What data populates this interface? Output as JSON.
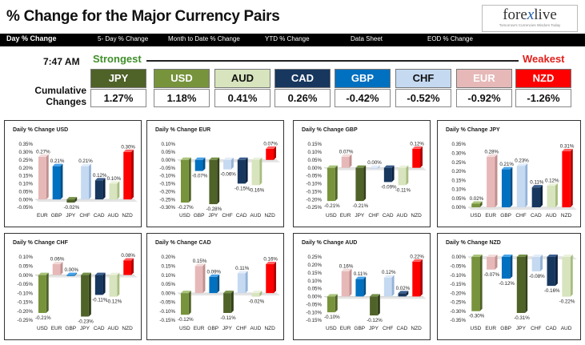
{
  "header": {
    "title": "% Change for the Major Currency Pairs",
    "logo_pre": "fore",
    "logo_x": "x",
    "logo_post": "live",
    "logo_tagline": "Tomorrow's Currencies Wisdom Today"
  },
  "nav": {
    "tabs": [
      {
        "label": "Day % Change"
      },
      {
        "label": "5- Day % Change"
      },
      {
        "label": "Month to Date % Change"
      },
      {
        "label": "YTD % Change"
      },
      {
        "label": "Data Sheet"
      },
      {
        "label": "EOD % Change"
      }
    ]
  },
  "summary": {
    "time": "7:47 AM",
    "strongest_label": "Strongest",
    "weakest_label": "Weakest",
    "cumulative_label": "Cumulative Changes",
    "currencies": [
      {
        "code": "JPY",
        "value": "1.27%",
        "bg": "#4f6228",
        "fg": "#ffffff"
      },
      {
        "code": "USD",
        "value": "1.18%",
        "bg": "#77933c",
        "fg": "#ffffff"
      },
      {
        "code": "AUD",
        "value": "0.41%",
        "bg": "#d7e4bd",
        "fg": "#111111"
      },
      {
        "code": "CAD",
        "value": "0.26%",
        "bg": "#17375e",
        "fg": "#ffffff"
      },
      {
        "code": "GBP",
        "value": "-0.42%",
        "bg": "#0070c0",
        "fg": "#ffffff"
      },
      {
        "code": "CHF",
        "value": "-0.52%",
        "bg": "#c5d9f1",
        "fg": "#111111"
      },
      {
        "code": "EUR",
        "value": "-0.92%",
        "bg": "#e6b9b8",
        "fg": "#ffffff"
      },
      {
        "code": "NZD",
        "value": "-1.26%",
        "bg": "#ff0000",
        "fg": "#ffffff"
      }
    ]
  },
  "colors": {
    "USD": {
      "main": "#77933c",
      "light": "#a9c47a",
      "dark": "#4f6228"
    },
    "EUR": {
      "main": "#e6b9b8",
      "light": "#f2dcdb",
      "dark": "#c09090"
    },
    "GBP": {
      "main": "#0070c0",
      "light": "#4aa3e8",
      "dark": "#004f88"
    },
    "JPY": {
      "main": "#4f6228",
      "light": "#76924a",
      "dark": "#33401a"
    },
    "CHF": {
      "main": "#c5d9f1",
      "light": "#e3edf9",
      "dark": "#95b3d7"
    },
    "CAD": {
      "main": "#17375e",
      "light": "#3c5f8e",
      "dark": "#0d2240"
    },
    "AUD": {
      "main": "#d7e4bd",
      "light": "#ebf2dc",
      "dark": "#a8bd80"
    },
    "NZD": {
      "main": "#ff0000",
      "light": "#ff6060",
      "dark": "#b00000"
    }
  },
  "chart_data": [
    {
      "type": "bar",
      "base": "USD",
      "title": "Daily % Change USD",
      "categories": [
        "EUR",
        "GBP",
        "JPY",
        "CHF",
        "CAD",
        "AUD",
        "NZD"
      ],
      "values": [
        0.27,
        0.21,
        -0.02,
        0.21,
        0.12,
        0.1,
        0.3
      ],
      "labels": [
        "0.27%",
        "0.21%",
        "-0.02%",
        "0.21%",
        "0.12%",
        "0.10%",
        "0.30%"
      ],
      "ticks": [
        "0.35%",
        "0.30%",
        "0.25%",
        "0.20%",
        "0.15%",
        "0.10%",
        "0.05%",
        "0.00%",
        "-0.05%"
      ],
      "ylim": [
        -0.05,
        0.35
      ],
      "grid": false
    },
    {
      "type": "bar",
      "base": "EUR",
      "title": "Daily % Change EUR",
      "categories": [
        "USD",
        "GBP",
        "JPY",
        "CHF",
        "CAD",
        "AUD",
        "NZD"
      ],
      "values": [
        -0.27,
        -0.07,
        -0.28,
        -0.06,
        -0.15,
        -0.16,
        0.07
      ],
      "labels": [
        "-0.27%",
        "-0.07%",
        "-0.28%",
        "-0.06%",
        "-0.15%",
        "-0.16%",
        "0.07%"
      ],
      "ticks": [
        "0.10%",
        "0.05%",
        "0.00%",
        "-0.05%",
        "-0.10%",
        "-0.15%",
        "-0.20%",
        "-0.25%",
        "-0.30%"
      ],
      "ylim": [
        -0.3,
        0.1
      ],
      "grid": false
    },
    {
      "type": "bar",
      "base": "GBP",
      "title": "Daily % Change GBP",
      "categories": [
        "USD",
        "EUR",
        "JPY",
        "CHF",
        "CAD",
        "AUD",
        "NZD"
      ],
      "values": [
        -0.21,
        0.07,
        -0.21,
        0.0,
        -0.09,
        -0.11,
        0.12
      ],
      "labels": [
        "-0.21%",
        "0.07%",
        "-0.21%",
        "0.00%",
        "-0.09%",
        "-0.11%",
        "0.12%"
      ],
      "ticks": [
        "0.15%",
        "0.10%",
        "0.05%",
        "0.00%",
        "-0.05%",
        "-0.10%",
        "-0.15%",
        "-0.20%",
        "-0.25%"
      ],
      "ylim": [
        -0.25,
        0.15
      ],
      "grid": false
    },
    {
      "type": "bar",
      "base": "JPY",
      "title": "Daily % Change JPY",
      "categories": [
        "USD",
        "EUR",
        "GBP",
        "CHF",
        "CAD",
        "AUD",
        "NZD"
      ],
      "values": [
        0.02,
        0.28,
        0.21,
        0.23,
        0.11,
        0.12,
        0.31
      ],
      "labels": [
        "0.02%",
        "0.28%",
        "0.21%",
        "0.23%",
        "0.11%",
        "0.12%",
        "0.31%"
      ],
      "ticks": [
        "0.35%",
        "0.30%",
        "0.25%",
        "0.20%",
        "0.15%",
        "0.10%",
        "0.05%",
        "0.00%"
      ],
      "ylim": [
        0.0,
        0.35
      ],
      "grid": false
    },
    {
      "type": "bar",
      "base": "CHF",
      "title": "Daily % Change CHF",
      "categories": [
        "USD",
        "EUR",
        "GBP",
        "JPY",
        "CAD",
        "AUD",
        "NZD"
      ],
      "values": [
        -0.21,
        0.06,
        0.0,
        -0.23,
        -0.11,
        -0.12,
        0.08
      ],
      "labels": [
        "-0.21%",
        "0.06%",
        "0.00%",
        "-0.23%",
        "-0.11%",
        "-0.12%",
        "0.08%"
      ],
      "ticks": [
        "0.10%",
        "0.05%",
        "0.00%",
        "-0.05%",
        "-0.10%",
        "-0.15%",
        "-0.20%",
        "-0.25%"
      ],
      "ylim": [
        -0.25,
        0.1
      ],
      "grid": false
    },
    {
      "type": "bar",
      "base": "CAD",
      "title": "Daily % Change CAD",
      "categories": [
        "USD",
        "EUR",
        "GBP",
        "JPY",
        "CHF",
        "AUD",
        "NZD"
      ],
      "values": [
        -0.12,
        0.15,
        0.09,
        -0.11,
        0.11,
        -0.02,
        0.16
      ],
      "labels": [
        "-0.12%",
        "0.15%",
        "0.09%",
        "-0.11%",
        "0.11%",
        "-0.02%",
        "0.16%"
      ],
      "ticks": [
        "0.20%",
        "0.15%",
        "0.10%",
        "0.05%",
        "0.00%",
        "-0.05%",
        "-0.10%",
        "-0.15%"
      ],
      "ylim": [
        -0.15,
        0.2
      ],
      "grid": false
    },
    {
      "type": "bar",
      "base": "AUD",
      "title": "Daily % Change AUD",
      "categories": [
        "USD",
        "EUR",
        "GBP",
        "JPY",
        "CHF",
        "CAD",
        "NZD"
      ],
      "values": [
        -0.1,
        0.16,
        0.11,
        -0.12,
        0.12,
        0.02,
        0.22
      ],
      "labels": [
        "-0.10%",
        "0.16%",
        "0.11%",
        "-0.12%",
        "0.12%",
        "0.02%",
        "0.22%"
      ],
      "ticks": [
        "0.25%",
        "0.20%",
        "0.15%",
        "0.10%",
        "0.05%",
        "0.00%",
        "-0.05%",
        "-0.10%",
        "-0.15%"
      ],
      "ylim": [
        -0.15,
        0.25
      ],
      "grid": false
    },
    {
      "type": "bar",
      "base": "NZD",
      "title": "Daily % Change NZD",
      "categories": [
        "USD",
        "EUR",
        "GBP",
        "JPY",
        "CHF",
        "CAD",
        "AUD"
      ],
      "values": [
        -0.3,
        -0.07,
        -0.12,
        -0.31,
        -0.08,
        -0.16,
        -0.22
      ],
      "labels": [
        "-0.30%",
        "-0.07%",
        "-0.12%",
        "-0.31%",
        "-0.08%",
        "-0.16%",
        "-0.22%"
      ],
      "ticks": [
        "0.00%",
        "-0.05%",
        "-0.10%",
        "-0.15%",
        "-0.20%",
        "-0.25%",
        "-0.30%",
        "-0.35%"
      ],
      "ylim": [
        -0.35,
        0.0
      ],
      "grid": false
    }
  ]
}
